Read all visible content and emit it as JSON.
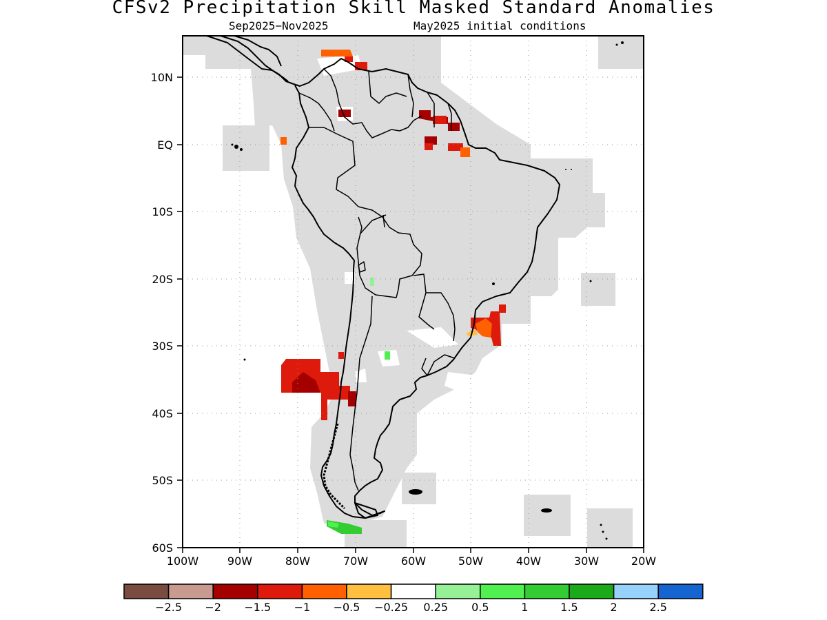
{
  "title": "CFSv2 Precipitation Skill Masked Standard Anomalies",
  "subtitle_left": "Sep2025−Nov2025",
  "subtitle_right": "May2025 initial conditions",
  "map": {
    "lon_range": [
      -100,
      -20
    ],
    "lat_range": [
      -60,
      6
    ],
    "lon_ticks": [
      {
        "lon": -100,
        "label": "100W"
      },
      {
        "lon": -90,
        "label": "90W"
      },
      {
        "lon": -80,
        "label": "80W"
      },
      {
        "lon": -70,
        "label": "70W"
      },
      {
        "lon": -60,
        "label": "60W"
      },
      {
        "lon": -50,
        "label": "50W"
      },
      {
        "lon": -40,
        "label": "40W"
      },
      {
        "lon": -30,
        "label": "30W"
      },
      {
        "lon": -20,
        "label": "20W"
      }
    ],
    "lat_ticks": [
      {
        "lat": 10,
        "label": "10N"
      },
      {
        "lat": 0,
        "label": "EQ"
      },
      {
        "lat": -10,
        "label": "10S"
      },
      {
        "lat": -20,
        "label": "20S"
      },
      {
        "lat": -30,
        "label": "30S"
      },
      {
        "lat": -40,
        "label": "40S"
      },
      {
        "lat": -50,
        "label": "50S"
      },
      {
        "lat": -60,
        "label": "60S"
      }
    ],
    "gridlines": "dotted",
    "mask_color": "#dcdcdc",
    "anomaly_regions": [
      {
        "name": "Southeast Pacific off central Chile",
        "value": -1.25,
        "color": "#dd1a0c"
      },
      {
        "name": "Southern Brazil coast",
        "value": -0.9,
        "color": "#e84800"
      },
      {
        "name": "Caribbean coast of Venezuela",
        "value": -1.0,
        "color": "#e84800"
      },
      {
        "name": "Guianas",
        "value": -1.5,
        "color": "#a50000"
      },
      {
        "name": "Central Colombia",
        "value": -1.5,
        "color": "#a50000"
      },
      {
        "name": "Tierra del Fuego",
        "value": 1.25,
        "color": "#33cc33"
      },
      {
        "name": "Central Argentina",
        "value": 0.75,
        "color": "#50f050"
      },
      {
        "name": "Northwest Argentina",
        "value": 0.3,
        "color": "#96f096"
      }
    ]
  },
  "colorbar": {
    "colors": [
      "#7a4b40",
      "#c99b90",
      "#a50000",
      "#dd1a0c",
      "#ff6000",
      "#ffc040",
      "#ffffff",
      "#96f096",
      "#50f050",
      "#33cc33",
      "#1aaa1a",
      "#96d2fa",
      "#1464d2"
    ],
    "labels": [
      "−2.5",
      "−2",
      "−1.5",
      "−1",
      "−0.5",
      "−0.25",
      "0.25",
      "0.5",
      "1",
      "1.5",
      "2",
      "2.5"
    ]
  }
}
